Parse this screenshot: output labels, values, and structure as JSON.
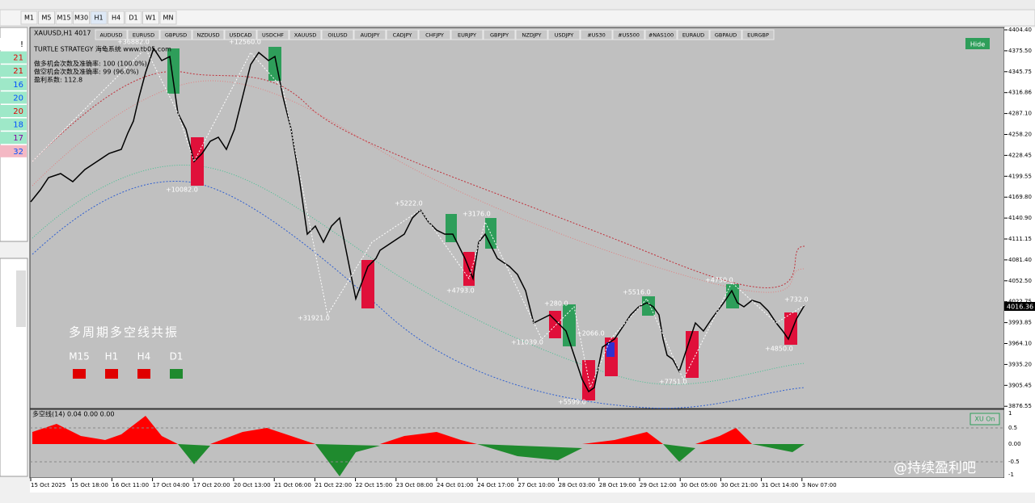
{
  "toolbar": {
    "timeframes": [
      "M1",
      "M5",
      "M15",
      "M30",
      "H1",
      "H4",
      "D1",
      "W1",
      "MN"
    ]
  },
  "watchlist": {
    "items": [
      "!",
      "21",
      "21",
      "16",
      "20",
      "20",
      "18",
      "17",
      "32"
    ]
  },
  "chart": {
    "title": "XAUUSD,H1 4017",
    "symbols": [
      "AUDUSD",
      "EURUSD",
      "GBPUSD",
      "NZDUSD",
      "USDCAD",
      "USDCHF",
      "XAUUSD",
      "OILUSD",
      "AUDJPY",
      "CADJPY",
      "CHFJPY",
      "EURJPY",
      "GBPJPY",
      "NZDJPY",
      "USDJPY",
      "#US30",
      "#US500",
      "#NAS100",
      "EURAUD",
      "GBPAUD",
      "EURGBP"
    ],
    "info": {
      "strategy": "TURTLE STRATEGY 海龟系统 www.tb05.com",
      "long_stats": "做多机会次数及准确率: 100 (100.0%)",
      "short_stats": "做空机会次数及准确率: 99 (96.0%)",
      "profit_factor": "盈利系数: 112.8"
    },
    "price_ticks": [
      "4404.40",
      "4375.50",
      "4345.75",
      "4316.86",
      "4287.10",
      "4258.20",
      "4228.45",
      "4199.55",
      "4169.80",
      "4140.90",
      "4111.15",
      "4081.40",
      "4052.50",
      "4022.75",
      "3993.85",
      "3964.10",
      "3935.20",
      "3905.45",
      "3876.55"
    ],
    "current_price": "4016.36",
    "annotations": [
      "+36882.0",
      "+12560.0",
      "+10082.0",
      "+31921.0",
      "+5222.0",
      "+3176.0",
      "+4793.0",
      "+280.0",
      "+11039.0",
      "+2066.0",
      "+5599.0",
      "+5516.0",
      "+7751.0",
      "+4750.0",
      "+732.0",
      "+4850.0"
    ],
    "hide_button": "Hide",
    "signal_panel": {
      "title": "多周期多空线共振",
      "timeframes": [
        "M15",
        "H1",
        "H4",
        "D1"
      ]
    },
    "indicator": {
      "label": "多空线(14) 0.04 0.00 0.00",
      "ticks": [
        "1",
        "0.5",
        "0.00",
        "-0.5",
        "-1"
      ],
      "button": "XU On"
    },
    "time_labels": [
      "15 Oct 2025",
      "15 Oct 18:00",
      "16 Oct 11:00",
      "17 Oct 04:00",
      "17 Oct 20:00",
      "20 Oct 13:00",
      "21 Oct 06:00",
      "21 Oct 22:00",
      "22 Oct 15:00",
      "23 Oct 08:00",
      "24 Oct 01:00",
      "24 Oct 17:00",
      "27 Oct 10:00",
      "28 Oct 03:00",
      "28 Oct 19:00",
      "29 Oct 12:00",
      "30 Oct 05:00",
      "30 Oct 21:00",
      "31 Oct 14:00",
      "3 Nov 07:00"
    ]
  },
  "watermark": "@持续盈利吧"
}
